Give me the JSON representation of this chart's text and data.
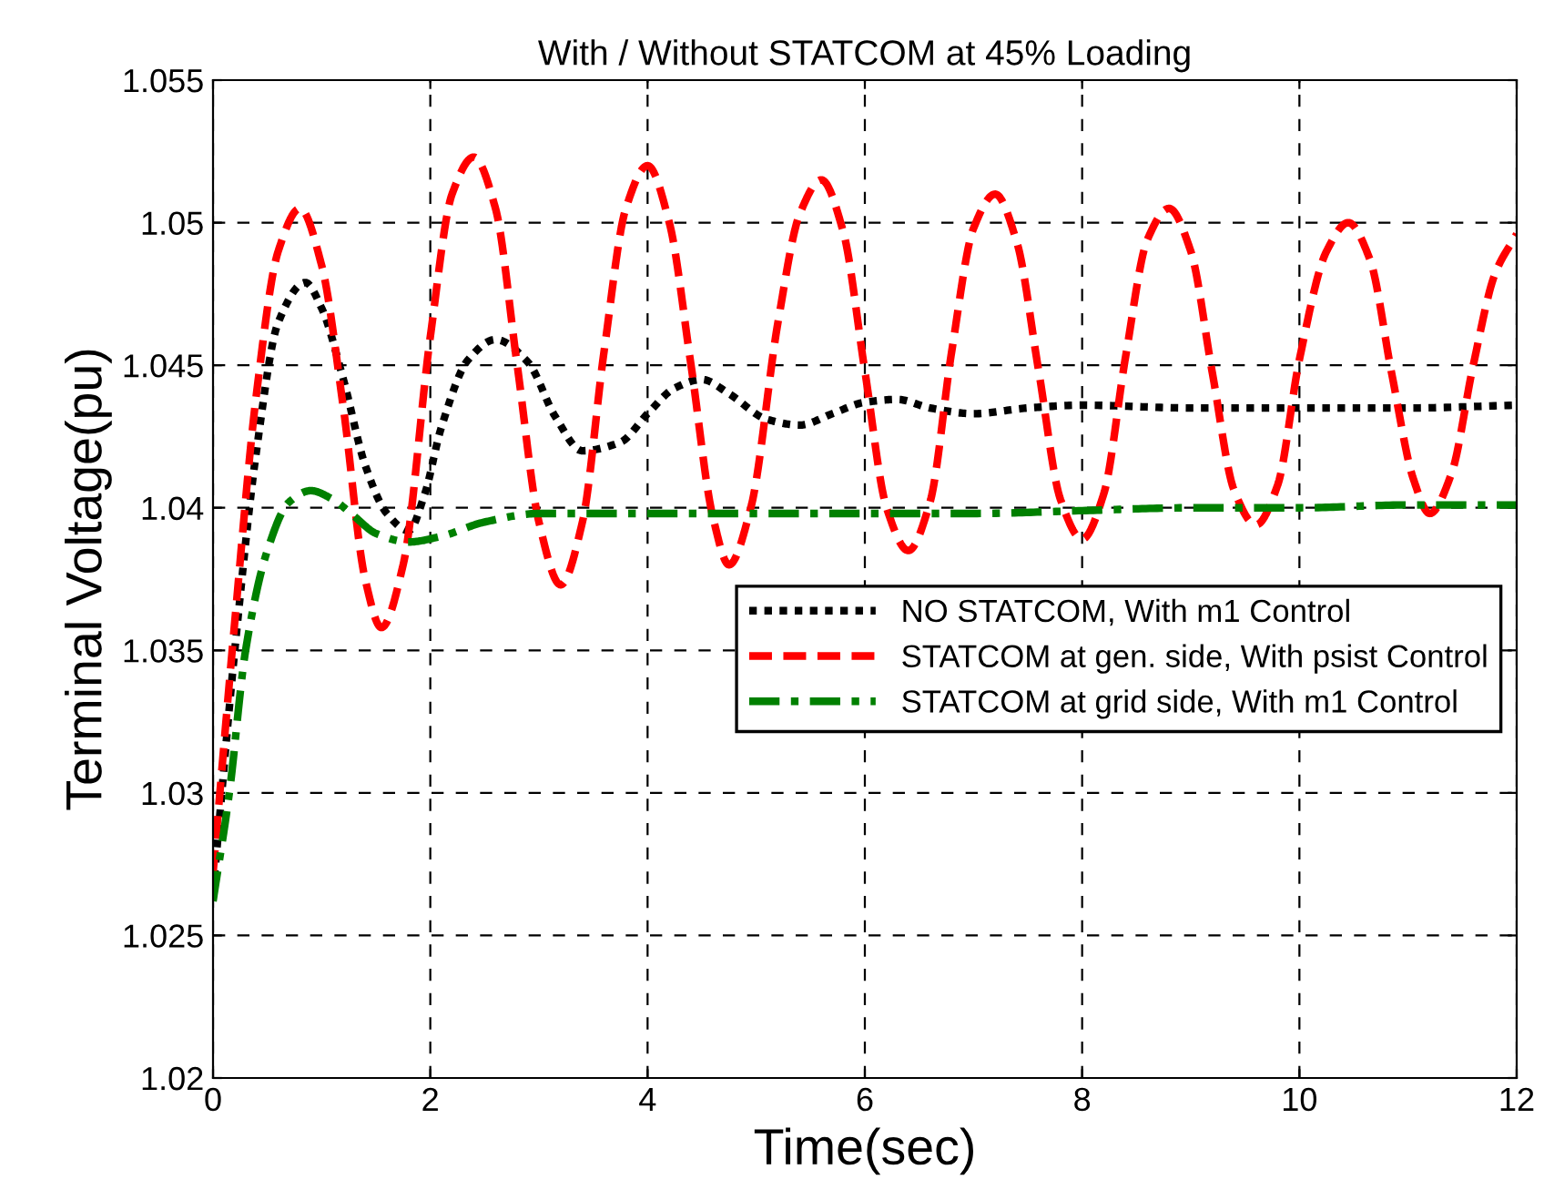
{
  "chart_data": {
    "type": "line",
    "title": "With / Without STATCOM at 45% Loading",
    "xlabel": "Time(sec)",
    "ylabel": "Terminal Voltage(pu)",
    "xlim": [
      0,
      12
    ],
    "xticks": [
      0,
      2,
      4,
      6,
      8,
      10,
      12
    ],
    "ylim": [
      1.02,
      1.055
    ],
    "yticks": [
      1.02,
      1.025,
      1.03,
      1.035,
      1.04,
      1.045,
      1.05,
      1.055
    ],
    "grid": true,
    "legend": "right",
    "series": [
      {
        "name": "NO STATCOM, With m1 Control",
        "color": "#000000",
        "line_style": "dotted",
        "x": [
          0,
          0.2,
          0.4,
          0.6,
          0.85,
          1.0,
          1.2,
          1.4,
          1.6,
          1.8,
          1.95,
          2.1,
          2.35,
          2.6,
          2.9,
          3.15,
          3.4,
          3.75,
          4.0,
          4.25,
          4.5,
          4.75,
          5.1,
          5.4,
          5.7,
          6.0,
          6.3,
          6.6,
          7.0,
          7.5,
          8.0,
          9.0,
          10.0,
          11.0,
          12.0
        ],
        "values": [
          1.0265,
          1.035,
          1.042,
          1.0465,
          1.0479,
          1.047,
          1.0445,
          1.0415,
          1.0398,
          1.0392,
          1.0405,
          1.0428,
          1.0452,
          1.0459,
          1.0451,
          1.0432,
          1.042,
          1.0423,
          1.0433,
          1.0442,
          1.0445,
          1.044,
          1.0431,
          1.0429,
          1.0433,
          1.0437,
          1.0438,
          1.0435,
          1.0433,
          1.0435,
          1.0436,
          1.0435,
          1.0435,
          1.0435,
          1.0436
        ]
      },
      {
        "name": "STATCOM at gen. side, With psist Control",
        "color": "#ff0000",
        "line_style": "dashed",
        "x": [
          0,
          0.2,
          0.4,
          0.6,
          0.8,
          1.0,
          1.2,
          1.4,
          1.55,
          1.75,
          2.0,
          2.2,
          2.4,
          2.6,
          2.8,
          3.0,
          3.2,
          3.4,
          3.6,
          3.8,
          4.0,
          4.2,
          4.4,
          4.6,
          4.75,
          4.95,
          5.2,
          5.4,
          5.6,
          5.8,
          6.0,
          6.2,
          6.4,
          6.6,
          6.8,
          7.0,
          7.2,
          7.4,
          7.6,
          7.8,
          8.0,
          8.2,
          8.4,
          8.6,
          8.8,
          9.0,
          9.2,
          9.4,
          9.6,
          9.8,
          10.0,
          10.25,
          10.45,
          10.65,
          10.85,
          11.05,
          11.2,
          11.4,
          11.6,
          11.8,
          12.0
        ],
        "values": [
          1.0272,
          1.036,
          1.044,
          1.049,
          1.0505,
          1.0485,
          1.0435,
          1.0375,
          1.0358,
          1.038,
          1.046,
          1.051,
          1.0523,
          1.0505,
          1.045,
          1.0395,
          1.0373,
          1.0395,
          1.0455,
          1.0505,
          1.052,
          1.05,
          1.045,
          1.0397,
          1.038,
          1.04,
          1.0465,
          1.0503,
          1.0515,
          1.0497,
          1.0448,
          1.04,
          1.0385,
          1.0402,
          1.0455,
          1.0498,
          1.051,
          1.0493,
          1.0448,
          1.0403,
          1.0389,
          1.0405,
          1.0453,
          1.0494,
          1.0505,
          1.049,
          1.0447,
          1.0406,
          1.0394,
          1.0408,
          1.0452,
          1.049,
          1.05,
          1.0487,
          1.0447,
          1.041,
          1.0398,
          1.0412,
          1.045,
          1.0482,
          1.0496
        ]
      },
      {
        "name": "STATCOM at grid side, With m1 Control",
        "color": "#008000",
        "line_style": "dashdot",
        "x": [
          0,
          0.15,
          0.3,
          0.5,
          0.7,
          0.9,
          1.1,
          1.3,
          1.5,
          1.8,
          2.1,
          2.5,
          3.0,
          4.0,
          5.0,
          6.0,
          7.0,
          8.0,
          9.0,
          10.0,
          11.0,
          12.0
        ],
        "values": [
          1.0262,
          1.03,
          1.035,
          1.0385,
          1.0402,
          1.0406,
          1.0403,
          1.0397,
          1.0391,
          1.0388,
          1.039,
          1.0395,
          1.0398,
          1.0398,
          1.0398,
          1.0398,
          1.0398,
          1.0399,
          1.04,
          1.04,
          1.0401,
          1.0401
        ]
      }
    ]
  }
}
